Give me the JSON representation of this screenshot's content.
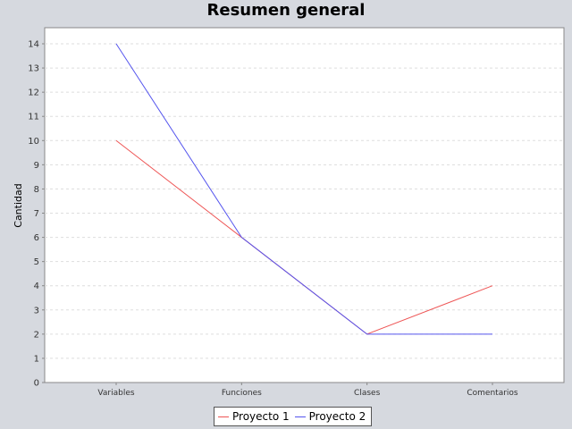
{
  "chart_data": {
    "type": "line",
    "title": "Resumen general",
    "xlabel": "",
    "ylabel": "Cantidad",
    "categories": [
      "Variables",
      "Funciones",
      "Clases",
      "Comentarios"
    ],
    "ylim": [
      0,
      14
    ],
    "yticks": [
      0,
      1,
      2,
      3,
      4,
      5,
      6,
      7,
      8,
      9,
      10,
      11,
      12,
      13,
      14
    ],
    "grid": true,
    "legend_position": "bottom",
    "series": [
      {
        "name": "Proyecto 1",
        "color": "#ee5555",
        "values": [
          10,
          6,
          2,
          4
        ]
      },
      {
        "name": "Proyecto 2",
        "color": "#5555ee",
        "values": [
          14,
          6,
          2,
          2
        ]
      }
    ]
  }
}
